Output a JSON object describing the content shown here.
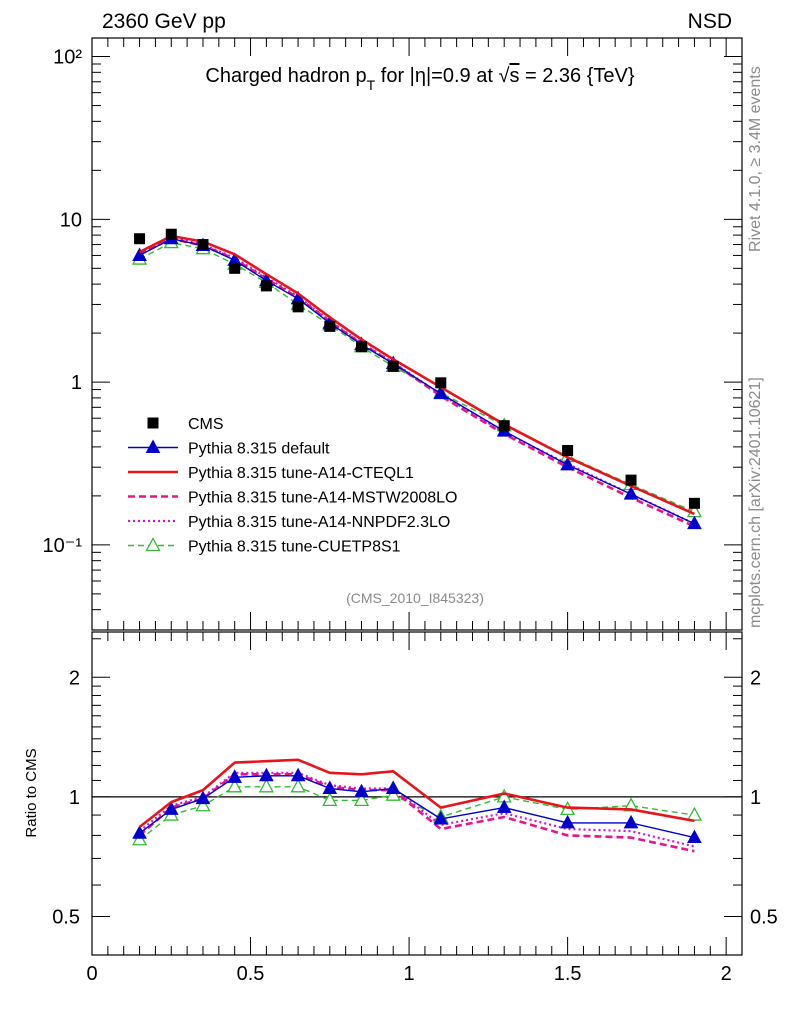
{
  "header": {
    "left": "2360 GeV pp",
    "right": "NSD"
  },
  "side_labels": {
    "rivet": "Rivet 4.1.0, ≥ 3.4M events",
    "mcplots": "mcplots.cern.ch [arXiv:2401.10621]"
  },
  "colors": {
    "cms": "#000000",
    "default": "#0000cc",
    "cteql1": "#e8141b",
    "mstw": "#e8148c",
    "nnpdf": "#d314d3",
    "cuetp8s1": "#33bb33"
  },
  "chart_data": [
    {
      "type": "line",
      "panel": "main",
      "title_parts": {
        "pre": "Charged hadron p",
        "sub": "T",
        "post_eta": " for |η|=0.9 at ",
        "sqrt": "s",
        "post": " = 2.36 {TeV}"
      },
      "yscale": "log",
      "ylim": [
        0.03,
        130
      ],
      "xlim": [
        0,
        2.05
      ],
      "ytick_labels": [
        "10²",
        "10",
        "1",
        "10⁻¹"
      ],
      "ytick_values": [
        100,
        10,
        1,
        0.1
      ],
      "analysis_label": "(CMS_2010_I845323)",
      "x": [
        0.15,
        0.25,
        0.35,
        0.45,
        0.55,
        0.65,
        0.75,
        0.85,
        0.95,
        1.1,
        1.3,
        1.5,
        1.7,
        1.9
      ],
      "series": [
        {
          "key": "cms",
          "name": "CMS",
          "style": "square",
          "values": [
            7.6,
            8.1,
            7.0,
            5.0,
            3.9,
            2.9,
            2.2,
            1.65,
            1.25,
            0.99,
            0.54,
            0.38,
            0.25,
            0.18
          ]
        },
        {
          "key": "default",
          "name": "Pythia 8.315 default",
          "style": "solid-triangle",
          "values": [
            6.0,
            7.6,
            6.9,
            5.6,
            4.2,
            3.25,
            2.3,
            1.7,
            1.3,
            0.85,
            0.5,
            0.31,
            0.205,
            0.135
          ]
        },
        {
          "key": "cteql1",
          "name": "Pythia 8.315 tune-A14-CTEQL1",
          "style": "thick",
          "values": [
            6.3,
            7.9,
            7.3,
            6.1,
            4.6,
            3.5,
            2.5,
            1.83,
            1.38,
            0.93,
            0.55,
            0.345,
            0.23,
            0.155
          ]
        },
        {
          "key": "mstw",
          "name": "Pythia 8.315 tune-A14-MSTW2008LO",
          "style": "dashed",
          "values": [
            6.1,
            7.6,
            6.9,
            5.7,
            4.3,
            3.3,
            2.35,
            1.72,
            1.31,
            0.82,
            0.48,
            0.3,
            0.195,
            0.13
          ]
        },
        {
          "key": "nnpdf",
          "name": "Pythia 8.315 tune-A14-NNPDF2.3LO",
          "style": "dotted",
          "values": [
            6.2,
            7.7,
            7.0,
            5.8,
            4.4,
            3.35,
            2.38,
            1.74,
            1.32,
            0.84,
            0.49,
            0.315,
            0.205,
            0.135
          ]
        },
        {
          "key": "cuetp8s1",
          "name": "Pythia 8.315 tune-CUETP8S1",
          "style": "green-open-triangle",
          "values": [
            5.7,
            7.2,
            6.6,
            5.3,
            4.1,
            3.0,
            2.25,
            1.65,
            1.25,
            0.86,
            0.54,
            0.35,
            0.235,
            0.16
          ]
        }
      ]
    },
    {
      "type": "line",
      "panel": "ratio",
      "ylabel": "Ratio to CMS",
      "yscale": "log",
      "ylim": [
        0.4,
        2.6
      ],
      "xlim": [
        0,
        2.05
      ],
      "ytick_labels": [
        "2",
        "1",
        "0.5"
      ],
      "ytick_values": [
        2,
        1,
        0.5
      ],
      "xtick_labels": [
        "0",
        "0.5",
        "1",
        "1.5",
        "2"
      ],
      "xtick_values": [
        0,
        0.5,
        1,
        1.5,
        2
      ],
      "x": [
        0.15,
        0.25,
        0.35,
        0.45,
        0.55,
        0.65,
        0.75,
        0.85,
        0.95,
        1.1,
        1.3,
        1.5,
        1.7,
        1.9
      ],
      "series": [
        {
          "key": "default",
          "values": [
            0.81,
            0.93,
            0.99,
            1.12,
            1.13,
            1.13,
            1.05,
            1.03,
            1.05,
            0.88,
            0.94,
            0.86,
            0.86,
            0.79
          ]
        },
        {
          "key": "cteql1",
          "values": [
            0.84,
            0.97,
            1.04,
            1.22,
            1.23,
            1.24,
            1.15,
            1.14,
            1.16,
            0.94,
            1.02,
            0.94,
            0.93,
            0.87
          ]
        },
        {
          "key": "mstw",
          "values": [
            0.8,
            0.94,
            0.99,
            1.14,
            1.14,
            1.14,
            1.06,
            1.04,
            1.04,
            0.83,
            0.89,
            0.8,
            0.79,
            0.73
          ]
        },
        {
          "key": "nnpdf",
          "values": [
            0.82,
            0.95,
            1.0,
            1.15,
            1.15,
            1.15,
            1.07,
            1.05,
            1.05,
            0.85,
            0.91,
            0.83,
            0.82,
            0.75
          ]
        },
        {
          "key": "cuetp8s1",
          "values": [
            0.78,
            0.9,
            0.95,
            1.06,
            1.06,
            1.06,
            0.98,
            0.98,
            1.01,
            0.89,
            1.0,
            0.93,
            0.95,
            0.9
          ]
        }
      ]
    }
  ]
}
